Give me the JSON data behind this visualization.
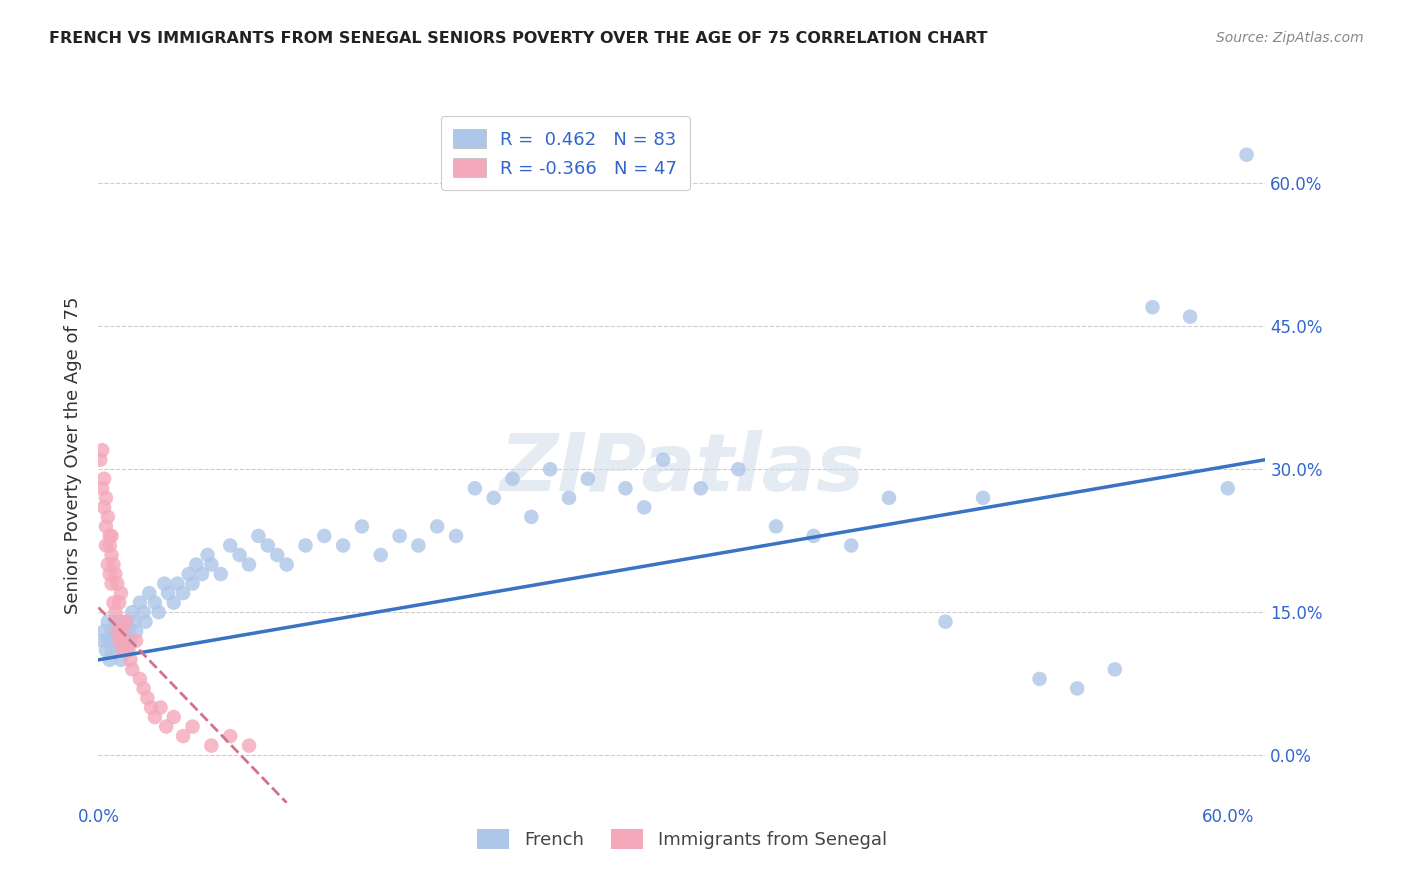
{
  "title": "FRENCH VS IMMIGRANTS FROM SENEGAL SENIORS POVERTY OVER THE AGE OF 75 CORRELATION CHART",
  "source": "Source: ZipAtlas.com",
  "ylabel": "Seniors Poverty Over the Age of 75",
  "xlim": [
    0.0,
    0.62
  ],
  "ylim": [
    -0.05,
    0.68
  ],
  "yticks": [
    0.0,
    0.15,
    0.3,
    0.45,
    0.6
  ],
  "ytick_labels": [
    "0.0%",
    "15.0%",
    "30.0%",
    "45.0%",
    "60.0%"
  ],
  "xtick_left_label": "0.0%",
  "xtick_right_label": "60.0%",
  "french_R": 0.462,
  "french_N": 83,
  "senegal_R": -0.366,
  "senegal_N": 47,
  "french_color": "#aec6e8",
  "senegal_color": "#f4a8ba",
  "french_line_color": "#3a72c4",
  "senegal_line_color": "#d47090",
  "watermark_text": "ZIPatlas",
  "french_line_x0": 0.0,
  "french_line_y0": 0.1,
  "french_line_x1": 0.62,
  "french_line_y1": 0.31,
  "senegal_line_x0": 0.0,
  "senegal_line_y0": 0.155,
  "senegal_line_x1": 0.1,
  "senegal_line_y1": -0.05,
  "french_scatter_x": [
    0.002,
    0.003,
    0.004,
    0.005,
    0.005,
    0.006,
    0.007,
    0.007,
    0.008,
    0.009,
    0.01,
    0.01,
    0.011,
    0.012,
    0.012,
    0.013,
    0.014,
    0.015,
    0.015,
    0.016,
    0.017,
    0.018,
    0.019,
    0.02,
    0.022,
    0.024,
    0.025,
    0.027,
    0.03,
    0.032,
    0.035,
    0.037,
    0.04,
    0.042,
    0.045,
    0.048,
    0.05,
    0.052,
    0.055,
    0.058,
    0.06,
    0.065,
    0.07,
    0.075,
    0.08,
    0.085,
    0.09,
    0.095,
    0.1,
    0.11,
    0.12,
    0.13,
    0.14,
    0.15,
    0.16,
    0.17,
    0.18,
    0.19,
    0.2,
    0.21,
    0.22,
    0.23,
    0.24,
    0.25,
    0.26,
    0.28,
    0.29,
    0.3,
    0.32,
    0.34,
    0.36,
    0.38,
    0.4,
    0.42,
    0.45,
    0.47,
    0.5,
    0.52,
    0.54,
    0.56,
    0.58,
    0.6,
    0.61
  ],
  "french_scatter_y": [
    0.12,
    0.13,
    0.11,
    0.14,
    0.12,
    0.1,
    0.13,
    0.11,
    0.12,
    0.14,
    0.11,
    0.13,
    0.12,
    0.14,
    0.1,
    0.13,
    0.12,
    0.11,
    0.14,
    0.13,
    0.12,
    0.15,
    0.14,
    0.13,
    0.16,
    0.15,
    0.14,
    0.17,
    0.16,
    0.15,
    0.18,
    0.17,
    0.16,
    0.18,
    0.17,
    0.19,
    0.18,
    0.2,
    0.19,
    0.21,
    0.2,
    0.19,
    0.22,
    0.21,
    0.2,
    0.23,
    0.22,
    0.21,
    0.2,
    0.22,
    0.23,
    0.22,
    0.24,
    0.21,
    0.23,
    0.22,
    0.24,
    0.23,
    0.28,
    0.27,
    0.29,
    0.25,
    0.3,
    0.27,
    0.29,
    0.28,
    0.26,
    0.31,
    0.28,
    0.3,
    0.24,
    0.23,
    0.22,
    0.27,
    0.14,
    0.27,
    0.08,
    0.07,
    0.09,
    0.47,
    0.46,
    0.28,
    0.63
  ],
  "senegal_scatter_x": [
    0.001,
    0.002,
    0.002,
    0.003,
    0.003,
    0.004,
    0.004,
    0.004,
    0.005,
    0.005,
    0.006,
    0.006,
    0.006,
    0.007,
    0.007,
    0.007,
    0.008,
    0.008,
    0.009,
    0.009,
    0.01,
    0.01,
    0.011,
    0.011,
    0.012,
    0.012,
    0.013,
    0.013,
    0.014,
    0.015,
    0.016,
    0.017,
    0.018,
    0.02,
    0.022,
    0.024,
    0.026,
    0.028,
    0.03,
    0.033,
    0.036,
    0.04,
    0.045,
    0.05,
    0.06,
    0.07,
    0.08
  ],
  "senegal_scatter_y": [
    0.31,
    0.28,
    0.32,
    0.26,
    0.29,
    0.24,
    0.27,
    0.22,
    0.25,
    0.2,
    0.23,
    0.19,
    0.22,
    0.21,
    0.18,
    0.23,
    0.2,
    0.16,
    0.19,
    0.15,
    0.18,
    0.13,
    0.16,
    0.12,
    0.14,
    0.17,
    0.13,
    0.11,
    0.12,
    0.14,
    0.11,
    0.1,
    0.09,
    0.12,
    0.08,
    0.07,
    0.06,
    0.05,
    0.04,
    0.05,
    0.03,
    0.04,
    0.02,
    0.03,
    0.01,
    0.02,
    0.01
  ]
}
